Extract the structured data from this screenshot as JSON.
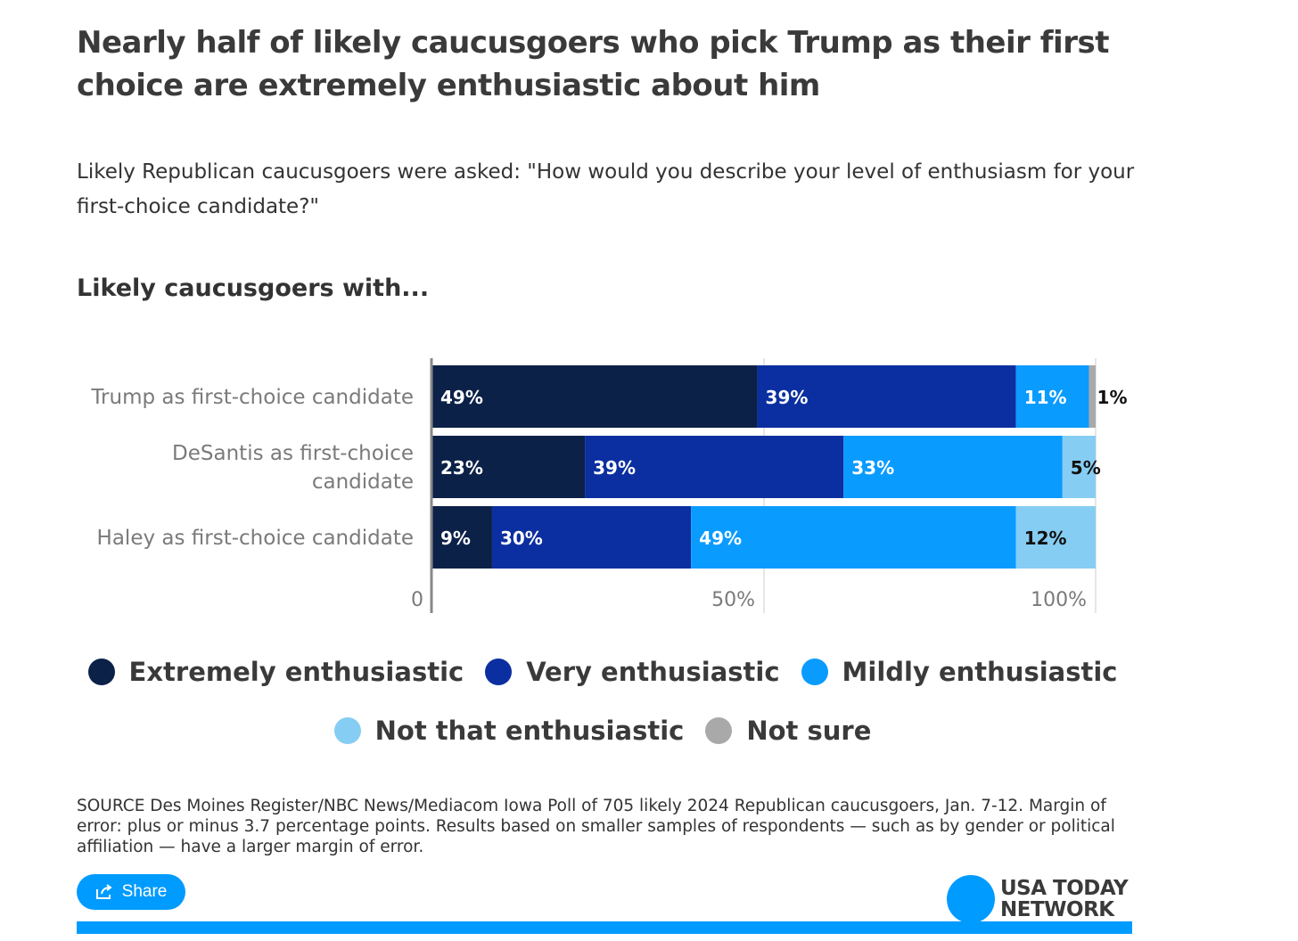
{
  "header": {
    "title": "Nearly half of likely caucusgoers who pick Trump as their first choice are extremely enthusiastic about him",
    "subtitle": "Likely Republican caucusgoers were asked: \"How would you describe your level of enthusiasm for your first-choice candidate?\"",
    "chart_heading": "Likely caucusgoers with..."
  },
  "chart_data": {
    "type": "bar",
    "orientation": "horizontal",
    "stacked": true,
    "categories": [
      "Trump as first-choice candidate",
      "DeSantis as first-choice candidate",
      "Haley as first-choice candidate"
    ],
    "category_lines": [
      [
        "Trump as first-choice candidate"
      ],
      [
        "DeSantis as first-choice",
        "candidate"
      ],
      [
        "Haley as first-choice candidate"
      ]
    ],
    "series": [
      {
        "name": "Extremely enthusiastic",
        "color": "#0c2148",
        "label_color": "#ffffff",
        "values": [
          49,
          23,
          9
        ]
      },
      {
        "name": "Very enthusiastic",
        "color": "#0b2fa0",
        "label_color": "#ffffff",
        "values": [
          39,
          39,
          30
        ]
      },
      {
        "name": "Mildly enthusiastic",
        "color": "#0a9bff",
        "label_color": "#ffffff",
        "values": [
          11,
          33,
          49
        ]
      },
      {
        "name": "Not that enthusiastic",
        "color": "#86cdf3",
        "label_color": "#111111",
        "values": [
          0,
          5,
          12
        ]
      },
      {
        "name": "Not sure",
        "color": "#a9a9a9",
        "label_color": "#111111",
        "values": [
          1,
          0,
          0
        ]
      }
    ],
    "xlim": [
      0,
      100
    ],
    "ticks": [
      {
        "value": 0,
        "label": "0"
      },
      {
        "value": 50,
        "label": "50%"
      },
      {
        "value": 100,
        "label": "100%"
      }
    ],
    "title": "Likely caucusgoers with...",
    "xlabel": "",
    "ylabel": "",
    "legend_position": "bottom"
  },
  "legend": {
    "row1": [
      {
        "label": "Extremely enthusiastic",
        "color": "#0c2148"
      },
      {
        "label": "Very enthusiastic",
        "color": "#0b2fa0"
      },
      {
        "label": "Mildly enthusiastic",
        "color": "#0a9bff"
      }
    ],
    "row2": [
      {
        "label": "Not that enthusiastic",
        "color": "#86cdf3"
      },
      {
        "label": "Not sure",
        "color": "#a9a9a9"
      }
    ]
  },
  "footer": {
    "source": "SOURCE Des Moines Register/NBC News/Mediacom Iowa Poll of 705 likely 2024 Republican caucusgoers, Jan. 7-12. Margin of error: plus or minus 3.7 percentage points. Results based on smaller samples of respondents — such as by gender or political affiliation — have a larger margin of error.",
    "share_label": "Share",
    "share_icon": "share-icon",
    "logo_line1": "USA TODAY",
    "logo_line2": "NETWORK",
    "accent_color": "#009bff"
  }
}
